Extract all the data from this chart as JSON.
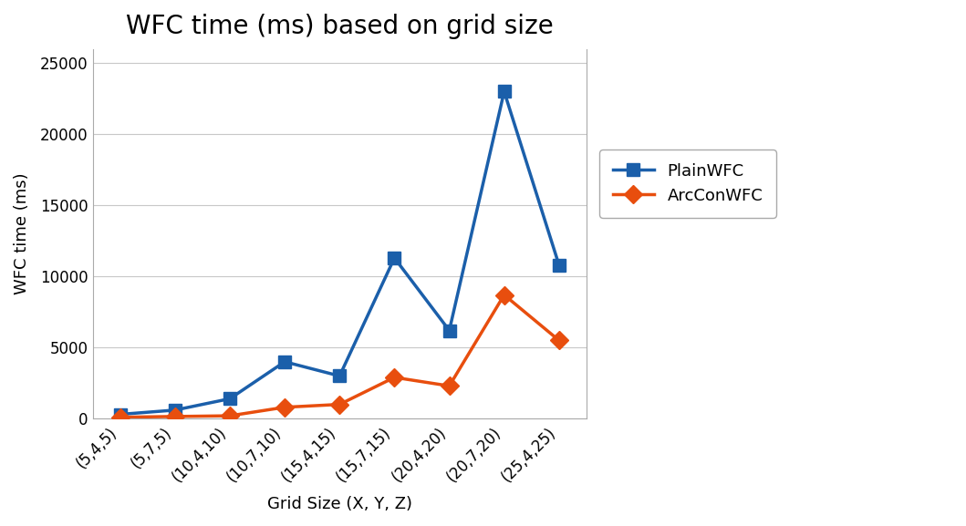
{
  "title": "WFC time (ms) based on grid size",
  "xlabel": "Grid Size (X, Y, Z)",
  "ylabel": "WFC time (ms)",
  "x_labels": [
    "(5,4,5)",
    "(5,7,5)",
    "(10,4,10)",
    "(10,7,10)",
    "(15,4,15)",
    "(15,7,15)",
    "(20,4,20)",
    "(20,7,20)",
    "(25,4,25)"
  ],
  "plain_wfc": [
    300,
    600,
    1400,
    4000,
    3000,
    11300,
    6200,
    23000,
    10800
  ],
  "arc_con_wfc": [
    100,
    150,
    200,
    800,
    1000,
    2900,
    2300,
    8700,
    5500
  ],
  "plain_color": "#1b5faa",
  "arc_color": "#e84e0e",
  "plain_label": "PlainWFC",
  "arc_label": "ArcConWFC",
  "ylim": [
    0,
    26000
  ],
  "yticks": [
    0,
    5000,
    10000,
    15000,
    20000,
    25000
  ],
  "background_color": "#ffffff",
  "grid_color": "#c8c8c8",
  "title_fontsize": 20,
  "axis_label_fontsize": 13,
  "tick_label_fontsize": 12,
  "legend_fontsize": 13,
  "line_width": 2.5,
  "marker_size": 10
}
